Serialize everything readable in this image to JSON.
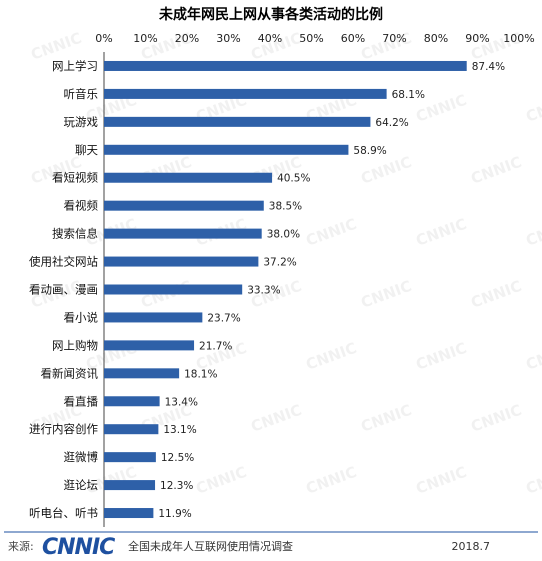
{
  "chart_data": {
    "type": "bar",
    "orientation": "horizontal",
    "title": "未成年网民上网从事各类活动的比例",
    "xlim": [
      0,
      100
    ],
    "x_ticks": [
      "0%",
      "10%",
      "20%",
      "30%",
      "40%",
      "50%",
      "60%",
      "70%",
      "80%",
      "90%",
      "100%"
    ],
    "categories": [
      "网上学习",
      "听音乐",
      "玩游戏",
      "聊天",
      "看短视频",
      "看视频",
      "搜索信息",
      "使用社交网站",
      "看动画、漫画",
      "看小说",
      "网上购物",
      "看新闻资讯",
      "看直播",
      "进行内容创作",
      "逛微博",
      "逛论坛",
      "听电台、听书"
    ],
    "values": [
      87.4,
      68.1,
      64.2,
      58.9,
      40.5,
      38.5,
      38.0,
      37.2,
      33.3,
      23.7,
      21.7,
      18.1,
      13.4,
      13.1,
      12.5,
      12.3,
      11.9
    ],
    "value_labels": [
      "87.4%",
      "68.1%",
      "64.2%",
      "58.9%",
      "40.5%",
      "38.5%",
      "38.0%",
      "37.2%",
      "33.3%",
      "23.7%",
      "21.7%",
      "18.1%",
      "13.4%",
      "13.1%",
      "12.5%",
      "12.3%",
      "11.9%"
    ],
    "bar_color": "#2e60a8",
    "grid": false,
    "legend": false
  },
  "footer": {
    "source_label": "来源:",
    "logo_text": "CNNIC",
    "report_name": "全国未成年人互联网使用情况调查",
    "date": "2018.7"
  },
  "watermark_text": "CNNIC",
  "colors": {
    "logo": "#1e50a0",
    "divider": "#1e50a0"
  }
}
